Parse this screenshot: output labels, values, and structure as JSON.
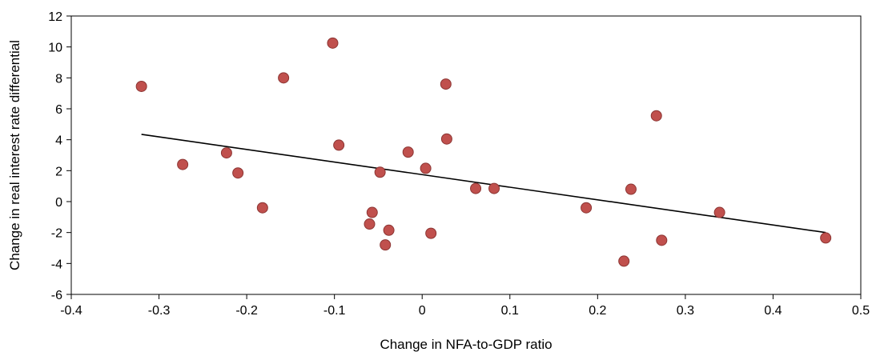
{
  "chart_data": {
    "type": "scatter",
    "title": "",
    "xlabel": "Change in NFA-to-GDP ratio",
    "ylabel": "Change in real interest rate differential",
    "xlim": [
      -0.4,
      0.5
    ],
    "ylim": [
      -6,
      12
    ],
    "x_ticks": [
      -0.4,
      -0.3,
      -0.2,
      -0.1,
      0,
      0.1,
      0.2,
      0.3,
      0.4,
      0.5
    ],
    "x_tick_labels": [
      "-0.4",
      "-0.3",
      "-0.2",
      "-0.1",
      "0",
      "0.1",
      "0.2",
      "0.3",
      "0.4",
      "0.5"
    ],
    "y_ticks": [
      -6,
      -4,
      -2,
      0,
      2,
      4,
      6,
      8,
      10,
      12
    ],
    "y_tick_labels": [
      "-6",
      "-4",
      "-2",
      "0",
      "2",
      "4",
      "6",
      "8",
      "10",
      "12"
    ],
    "grid": false,
    "legend": "none",
    "marker_color": "#c0504d",
    "marker_edge_color": "#8c3533",
    "trendline_color": "#000000",
    "series": [
      {
        "points": [
          {
            "x": -0.32,
            "y": 7.45
          },
          {
            "x": -0.273,
            "y": 2.4
          },
          {
            "x": -0.223,
            "y": 3.15
          },
          {
            "x": -0.21,
            "y": 1.85
          },
          {
            "x": -0.182,
            "y": -0.4
          },
          {
            "x": -0.158,
            "y": 8.0
          },
          {
            "x": -0.102,
            "y": 10.25
          },
          {
            "x": -0.095,
            "y": 3.65
          },
          {
            "x": -0.06,
            "y": -1.45
          },
          {
            "x": -0.057,
            "y": -0.7
          },
          {
            "x": -0.048,
            "y": 1.9
          },
          {
            "x": -0.042,
            "y": -2.8
          },
          {
            "x": -0.038,
            "y": -1.85
          },
          {
            "x": -0.016,
            "y": 3.2
          },
          {
            "x": 0.004,
            "y": 2.15
          },
          {
            "x": 0.01,
            "y": -2.05
          },
          {
            "x": 0.027,
            "y": 7.6
          },
          {
            "x": 0.028,
            "y": 4.05
          },
          {
            "x": 0.061,
            "y": 0.85
          },
          {
            "x": 0.082,
            "y": 0.85
          },
          {
            "x": 0.187,
            "y": -0.4
          },
          {
            "x": 0.23,
            "y": -3.85
          },
          {
            "x": 0.238,
            "y": 0.8
          },
          {
            "x": 0.267,
            "y": 5.55
          },
          {
            "x": 0.273,
            "y": -2.5
          },
          {
            "x": 0.339,
            "y": -0.7
          },
          {
            "x": 0.46,
            "y": -2.35
          }
        ]
      }
    ],
    "trendline": {
      "x": [
        -0.32,
        0.46
      ],
      "y": [
        4.35,
        -2.0
      ]
    }
  }
}
